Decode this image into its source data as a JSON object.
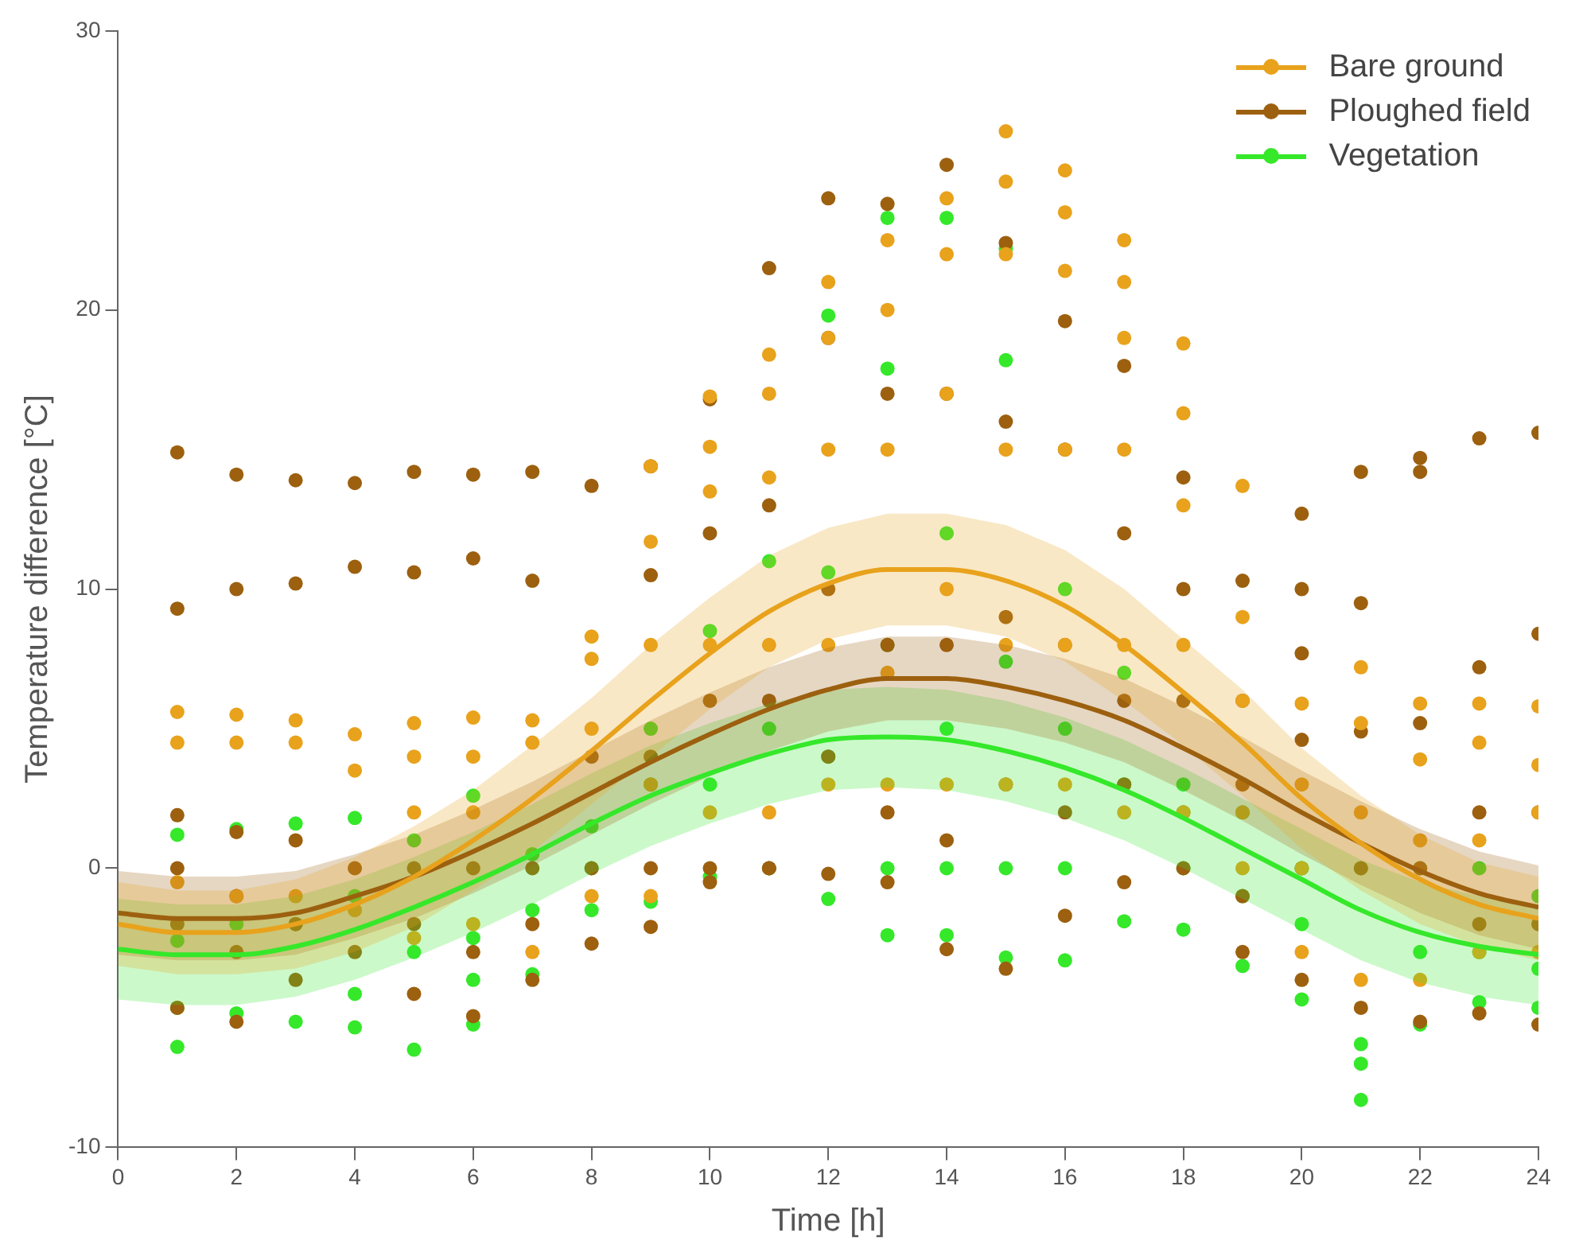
{
  "chart_data": {
    "type": "scatter",
    "xlabel": "Time [h]",
    "ylabel": "Temperature difference [°C]",
    "xlim": [
      0,
      24
    ],
    "xticks": [
      0,
      2,
      4,
      6,
      8,
      10,
      12,
      14,
      16,
      18,
      20,
      22,
      24
    ],
    "ylim": [
      -10,
      30
    ],
    "yticks": [
      -10,
      0,
      10,
      20,
      30
    ],
    "grid": false,
    "legend": "top right",
    "marker": "circle",
    "series": [
      {
        "name": "Bare ground",
        "color": "#e8a21c",
        "x": [
          1,
          1,
          1,
          2,
          2,
          2,
          3,
          3,
          3,
          4,
          4,
          4,
          5,
          5,
          5,
          5,
          6,
          6,
          6,
          6,
          7,
          7,
          7,
          8,
          8,
          8,
          8,
          9,
          9,
          9,
          9,
          9,
          10,
          10,
          10,
          10,
          10,
          11,
          11,
          11,
          11,
          11,
          12,
          12,
          12,
          12,
          12,
          13,
          13,
          13,
          13,
          13,
          14,
          14,
          14,
          14,
          14,
          15,
          15,
          15,
          15,
          15,
          15,
          16,
          16,
          16,
          16,
          16,
          16,
          17,
          17,
          17,
          17,
          17,
          17,
          18,
          18,
          18,
          18,
          18,
          19,
          19,
          19,
          19,
          19,
          20,
          20,
          20,
          20,
          21,
          21,
          21,
          21,
          22,
          22,
          22,
          22,
          23,
          23,
          23,
          23,
          24,
          24,
          24,
          24
        ],
        "values": [
          5.6,
          4.5,
          -0.5,
          5.5,
          4.5,
          -1,
          5.3,
          4.5,
          -1,
          4.8,
          3.5,
          -1.5,
          5.2,
          4,
          2,
          -2.5,
          5.4,
          4,
          2,
          -2,
          5.3,
          4.5,
          -3,
          8.3,
          7.5,
          5,
          -1,
          14.4,
          11.7,
          8,
          3,
          -1,
          16.9,
          15.1,
          13.5,
          8,
          2,
          18.4,
          17,
          14,
          8,
          2,
          21,
          19,
          15,
          8,
          3,
          22.5,
          20,
          15,
          7,
          3,
          24,
          22,
          17,
          10,
          3,
          26.4,
          24.6,
          22,
          15,
          8,
          3,
          25,
          23.5,
          21.4,
          15,
          8,
          3,
          22.5,
          21,
          19,
          15,
          8,
          2,
          18.8,
          16.3,
          13,
          8,
          2,
          13.7,
          9,
          6,
          2,
          0,
          5.9,
          3,
          0,
          -3,
          7.2,
          5.2,
          2,
          -4,
          5.9,
          3.9,
          1,
          -4,
          5.9,
          4.5,
          1,
          -3,
          5.8,
          3.7,
          2,
          -3
        ]
      },
      {
        "name": "Ploughed field",
        "color": "#9c600f",
        "x": [
          1,
          1,
          1,
          1,
          1,
          1,
          2,
          2,
          2,
          2,
          2,
          2,
          3,
          3,
          3,
          3,
          3,
          4,
          4,
          4,
          4,
          5,
          5,
          5,
          5,
          5,
          6,
          6,
          6,
          6,
          6,
          7,
          7,
          7,
          7,
          7,
          8,
          8,
          8,
          8,
          9,
          9,
          9,
          9,
          9,
          10,
          10,
          10,
          10,
          10,
          11,
          11,
          11,
          11,
          11,
          12,
          12,
          12,
          12,
          12,
          13,
          13,
          13,
          13,
          13,
          14,
          14,
          14,
          14,
          14,
          15,
          15,
          15,
          15,
          15,
          16,
          16,
          16,
          16,
          16,
          17,
          17,
          17,
          17,
          17,
          18,
          18,
          18,
          18,
          18,
          19,
          19,
          19,
          19,
          19,
          20,
          20,
          20,
          20,
          20,
          20,
          21,
          21,
          21,
          21,
          21,
          22,
          22,
          22,
          22,
          22,
          23,
          23,
          23,
          23,
          23,
          24,
          24,
          24,
          24,
          24
        ],
        "values": [
          14.9,
          9.3,
          1.9,
          0,
          -2,
          -5,
          14.1,
          10,
          1.3,
          -1,
          -3,
          -5.5,
          13.9,
          10.2,
          1,
          -2,
          -4,
          13.8,
          10.8,
          0,
          -3,
          14.2,
          10.6,
          0,
          -2,
          -4.5,
          14.1,
          11.1,
          0,
          -3,
          -5.3,
          14.2,
          10.3,
          0,
          -2,
          -4,
          13.7,
          4,
          0,
          -2.7,
          14.4,
          10.5,
          4,
          0,
          -2.1,
          16.8,
          12,
          6,
          0,
          -0.5,
          21.5,
          13,
          6,
          0,
          0,
          24,
          19,
          10,
          4,
          -0.2,
          23.8,
          17,
          8,
          2,
          -0.5,
          25.2,
          17,
          8,
          1,
          -2.9,
          22.4,
          16,
          9,
          3,
          -3.6,
          19.6,
          15,
          8,
          2,
          -1.7,
          18,
          12,
          6,
          3,
          -0.5,
          14,
          10,
          6,
          2,
          0,
          10.3,
          6,
          3,
          -1,
          -3,
          12.7,
          10,
          7.7,
          4.6,
          0,
          -4,
          14.2,
          9.5,
          4.9,
          0,
          -5,
          14.7,
          14.2,
          5.2,
          0,
          -5.5,
          15.4,
          7.2,
          2,
          -2,
          -5.2,
          15.6,
          8.4,
          2,
          -2,
          -5.6
        ]
      },
      {
        "name": "Vegetation",
        "color": "#35e82a",
        "x": [
          1,
          1,
          1,
          1,
          2,
          2,
          2,
          3,
          3,
          3,
          4,
          4,
          4,
          4,
          5,
          5,
          5,
          6,
          6,
          6,
          6,
          7,
          7,
          7,
          8,
          8,
          8,
          9,
          9,
          9,
          10,
          10,
          10,
          11,
          11,
          11,
          12,
          12,
          12,
          12,
          13,
          13,
          13,
          13,
          13,
          14,
          14,
          14,
          14,
          14,
          15,
          15,
          15,
          15,
          15,
          16,
          16,
          16,
          16,
          17,
          17,
          17,
          18,
          18,
          18,
          19,
          19,
          19,
          20,
          20,
          20,
          21,
          21,
          21,
          21,
          22,
          22,
          22,
          23,
          23,
          23,
          24,
          24,
          24
        ],
        "values": [
          1.2,
          -2.6,
          -5,
          -6.4,
          1.4,
          -2,
          -5.2,
          1.6,
          -2,
          -5.5,
          1.8,
          -1,
          -4.5,
          -5.7,
          1,
          -3,
          -6.5,
          2.6,
          -2.5,
          -4,
          -5.6,
          0.5,
          -1.5,
          -3.8,
          1.5,
          0,
          -1.5,
          5,
          3,
          -1.2,
          8.5,
          3,
          -0.3,
          11,
          5,
          0,
          19.8,
          10.6,
          4,
          -1.1,
          23.3,
          17.9,
          8,
          0,
          -2.4,
          23.3,
          12,
          5,
          0,
          -2.4,
          22.2,
          18.2,
          7.4,
          0,
          -3.2,
          10,
          5,
          0,
          -3.3,
          7,
          3,
          -1.9,
          3,
          0,
          -2.2,
          2,
          -1,
          -3.5,
          0,
          -2,
          -4.7,
          0,
          -6.3,
          -7,
          -8.3,
          0,
          -3,
          -5.6,
          0,
          -3,
          -4.8,
          -1,
          -3.6,
          -5
        ]
      },
      {
        "type": "line",
        "color": "#e8a21c",
        "marker": "none",
        "x": [
          0,
          1,
          2,
          3,
          4,
          5,
          6,
          7,
          8,
          9,
          10,
          11,
          12,
          13,
          14,
          15,
          16,
          17,
          18,
          19,
          20,
          21,
          22,
          23,
          24
        ],
        "values": [
          -2,
          -2.3,
          -2.3,
          -2,
          -1.3,
          -0.3,
          1,
          2.5,
          4.2,
          6,
          7.7,
          9.2,
          10.2,
          10.7,
          10.7,
          10.3,
          9.4,
          8,
          6.3,
          4.5,
          2.5,
          0.9,
          -0.4,
          -1.3,
          -1.8
        ],
        "lower": [
          -3.5,
          -3.8,
          -3.8,
          -3.6,
          -3,
          -2.1,
          -0.8,
          0.6,
          2.3,
          4,
          5.7,
          7.2,
          8.2,
          8.7,
          8.7,
          8.3,
          7.4,
          6,
          4.4,
          2.6,
          0.7,
          -0.8,
          -2,
          -2.8,
          -3.3
        ],
        "upper": [
          -0.5,
          -0.8,
          -0.8,
          -0.4,
          0.4,
          1.5,
          2.8,
          4.4,
          6.1,
          8,
          9.7,
          11.2,
          12.2,
          12.7,
          12.7,
          12.3,
          11.4,
          10,
          8.2,
          6.4,
          4.3,
          2.6,
          1.2,
          0.2,
          -0.3
        ]
      },
      {
        "type": "line",
        "color": "#9c600f",
        "marker": "none",
        "x": [
          0,
          1,
          2,
          3,
          4,
          5,
          6,
          7,
          8,
          9,
          10,
          11,
          12,
          13,
          14,
          15,
          16,
          17,
          18,
          19,
          20,
          21,
          22,
          23,
          24
        ],
        "values": [
          -1.6,
          -1.8,
          -1.8,
          -1.6,
          -1,
          -0.3,
          0.6,
          1.6,
          2.7,
          3.8,
          4.8,
          5.7,
          6.4,
          6.8,
          6.8,
          6.5,
          6,
          5.3,
          4.3,
          3.2,
          2,
          0.9,
          -0.1,
          -0.9,
          -1.4
        ],
        "lower": [
          -3.1,
          -3.3,
          -3.3,
          -3.1,
          -2.5,
          -1.8,
          -0.9,
          0.1,
          1.2,
          2.3,
          3.3,
          4.2,
          4.9,
          5.3,
          5.3,
          5,
          4.5,
          3.8,
          2.8,
          1.7,
          0.5,
          -0.6,
          -1.6,
          -2.4,
          -2.9
        ],
        "upper": [
          -0.1,
          -0.3,
          -0.3,
          -0.1,
          0.5,
          1.2,
          2.1,
          3.1,
          4.2,
          5.3,
          6.3,
          7.2,
          7.9,
          8.3,
          8.3,
          8,
          7.5,
          6.8,
          5.8,
          4.7,
          3.5,
          2.4,
          1.4,
          0.6,
          0.1
        ]
      },
      {
        "type": "line",
        "color": "#35e82a",
        "marker": "none",
        "x": [
          0,
          1,
          2,
          3,
          4,
          5,
          6,
          7,
          8,
          9,
          10,
          11,
          12,
          13,
          14,
          15,
          16,
          17,
          18,
          19,
          20,
          21,
          22,
          23,
          24
        ],
        "values": [
          -2.9,
          -3.1,
          -3.1,
          -2.8,
          -2.2,
          -1.4,
          -0.5,
          0.5,
          1.6,
          2.6,
          3.4,
          4.1,
          4.6,
          4.7,
          4.6,
          4.2,
          3.6,
          2.8,
          1.8,
          0.7,
          -0.4,
          -1.5,
          -2.3,
          -2.8,
          -3.1
        ],
        "lower": [
          -4.7,
          -4.9,
          -4.9,
          -4.6,
          -4,
          -3.2,
          -2.3,
          -1.3,
          -0.2,
          0.8,
          1.6,
          2.3,
          2.8,
          2.9,
          2.8,
          2.4,
          1.8,
          1,
          0,
          -1.1,
          -2.2,
          -3.3,
          -4.1,
          -4.6,
          -4.9
        ],
        "upper": [
          -1.1,
          -1.3,
          -1.3,
          -1,
          -0.4,
          0.4,
          1.3,
          2.3,
          3.4,
          4.4,
          5.2,
          5.9,
          6.4,
          6.5,
          6.4,
          6,
          5.4,
          4.6,
          3.6,
          2.5,
          1.4,
          0.3,
          -0.5,
          -1,
          -1.3
        ]
      }
    ]
  }
}
